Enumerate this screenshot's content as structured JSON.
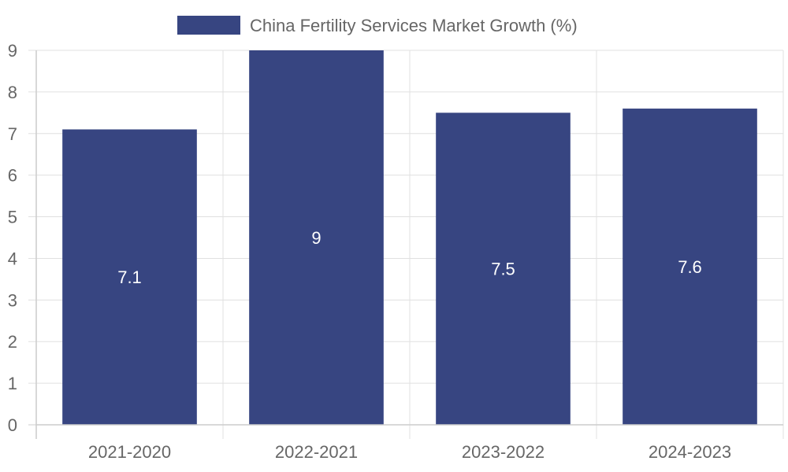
{
  "chart_data": {
    "type": "bar",
    "categories": [
      "2021-2020",
      "2022-2021",
      "2023-2022",
      "2024-2023"
    ],
    "series": [
      {
        "name": "China Fertility Services Market Growth (%)",
        "values": [
          7.1,
          9,
          7.5,
          7.6
        ]
      }
    ],
    "data_labels": [
      "7.1",
      "9",
      "7.5",
      "7.6"
    ],
    "title": "",
    "xlabel": "",
    "ylabel": "",
    "ylim": [
      0,
      9
    ],
    "yticks": [
      "0",
      "1",
      "2",
      "3",
      "4",
      "5",
      "6",
      "7",
      "8",
      "9"
    ],
    "grid": true,
    "legend_position": "top-center"
  },
  "colors": {
    "bar": "#374581",
    "grid": "#e0e0e0",
    "axis": "#cccccc",
    "text": "#666666"
  }
}
